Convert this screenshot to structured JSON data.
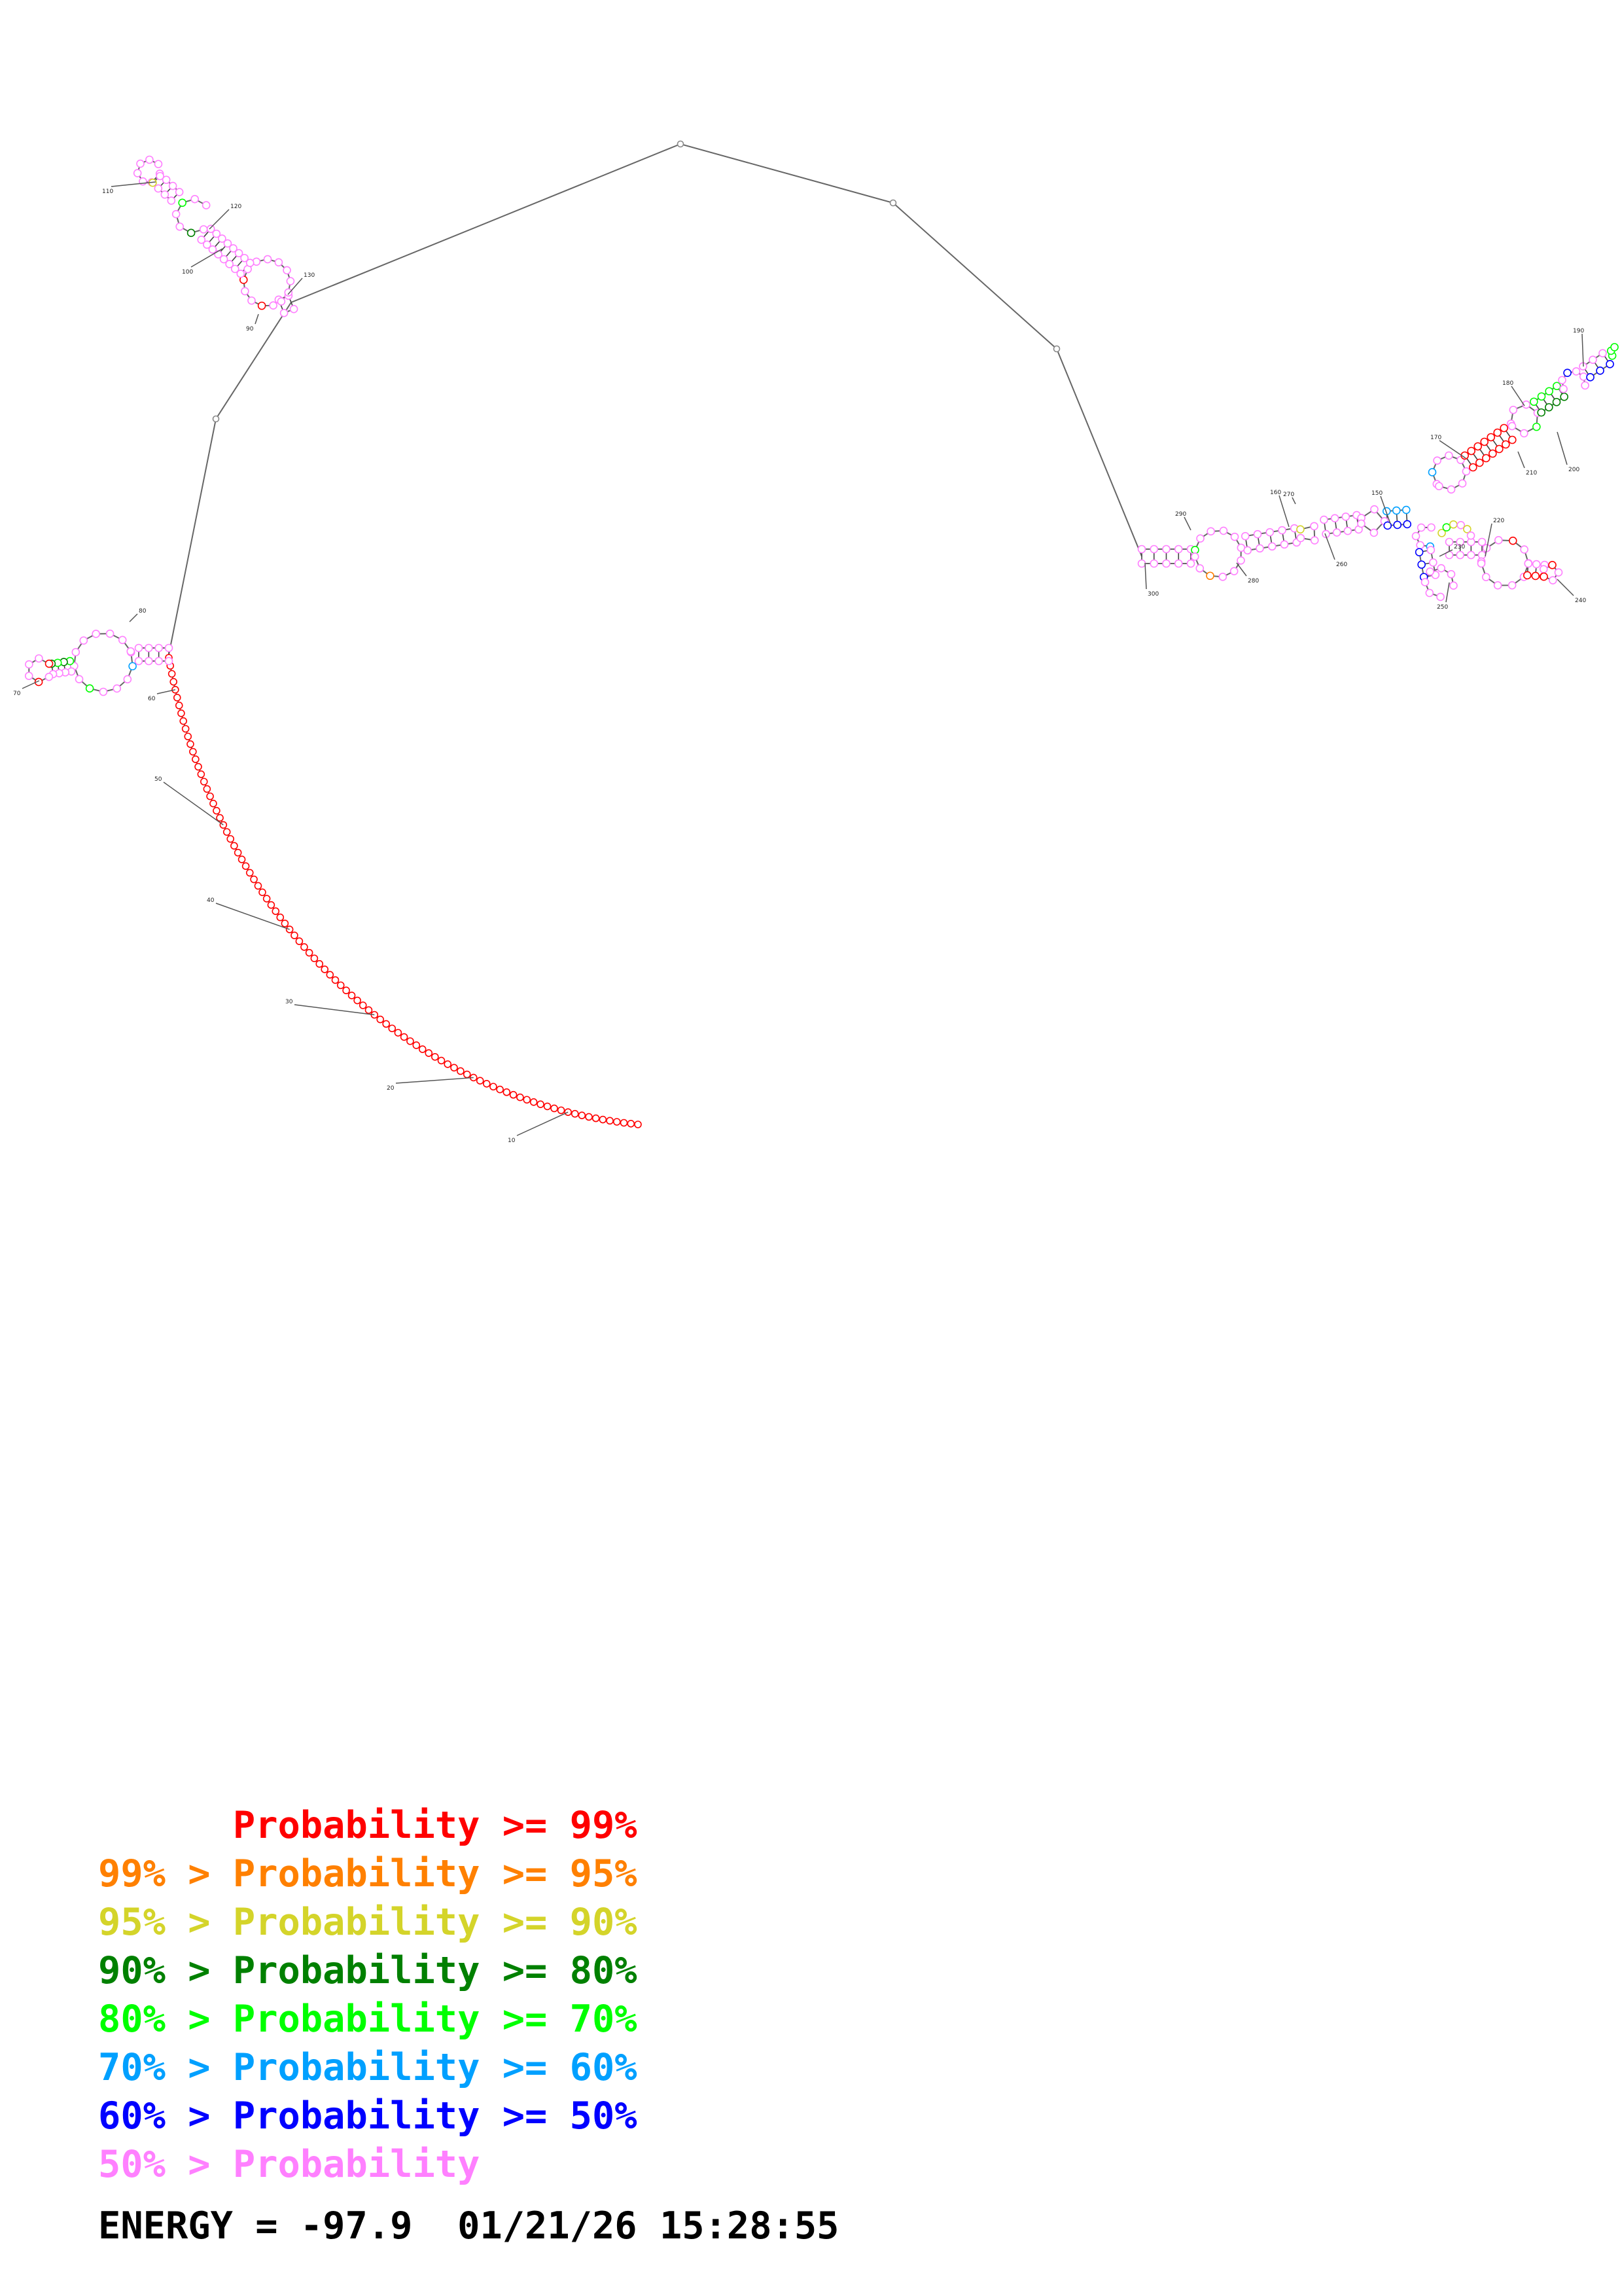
{
  "structure": {
    "nucleotide_indices": [
      "10",
      "20",
      "30",
      "40",
      "50",
      "60",
      "70",
      "80",
      "90",
      "100",
      "110",
      "120",
      "130",
      "140",
      "150",
      "160",
      "170",
      "180",
      "190",
      "200",
      "210",
      "220",
      "230",
      "240",
      "250",
      "260",
      "270",
      "280",
      "290",
      "300"
    ]
  },
  "legend": {
    "entries": [
      {
        "prefix": "",
        "label": "Probability >= 99%",
        "color": "#ff0000"
      },
      {
        "prefix": "99% > ",
        "label": "Probability >= 95%",
        "color": "#ff8000"
      },
      {
        "prefix": "95% > ",
        "label": "Probability >= 90%",
        "color": "#d4d42a"
      },
      {
        "prefix": "90% > ",
        "label": "Probability >= 80%",
        "color": "#008000"
      },
      {
        "prefix": "80% > ",
        "label": "Probability >= 70%",
        "color": "#00ff00"
      },
      {
        "prefix": "70% > ",
        "label": "Probability >= 60%",
        "color": "#00a0ff"
      },
      {
        "prefix": "60% > ",
        "label": "Probability >= 50%",
        "color": "#0000ff"
      },
      {
        "prefix": "50% > ",
        "label": "Probability",
        "color": "#ff80ff"
      }
    ]
  },
  "energy": {
    "label": "ENERGY = ",
    "value": "-97.9",
    "timestamp": "01/21/26 15:28:55"
  }
}
